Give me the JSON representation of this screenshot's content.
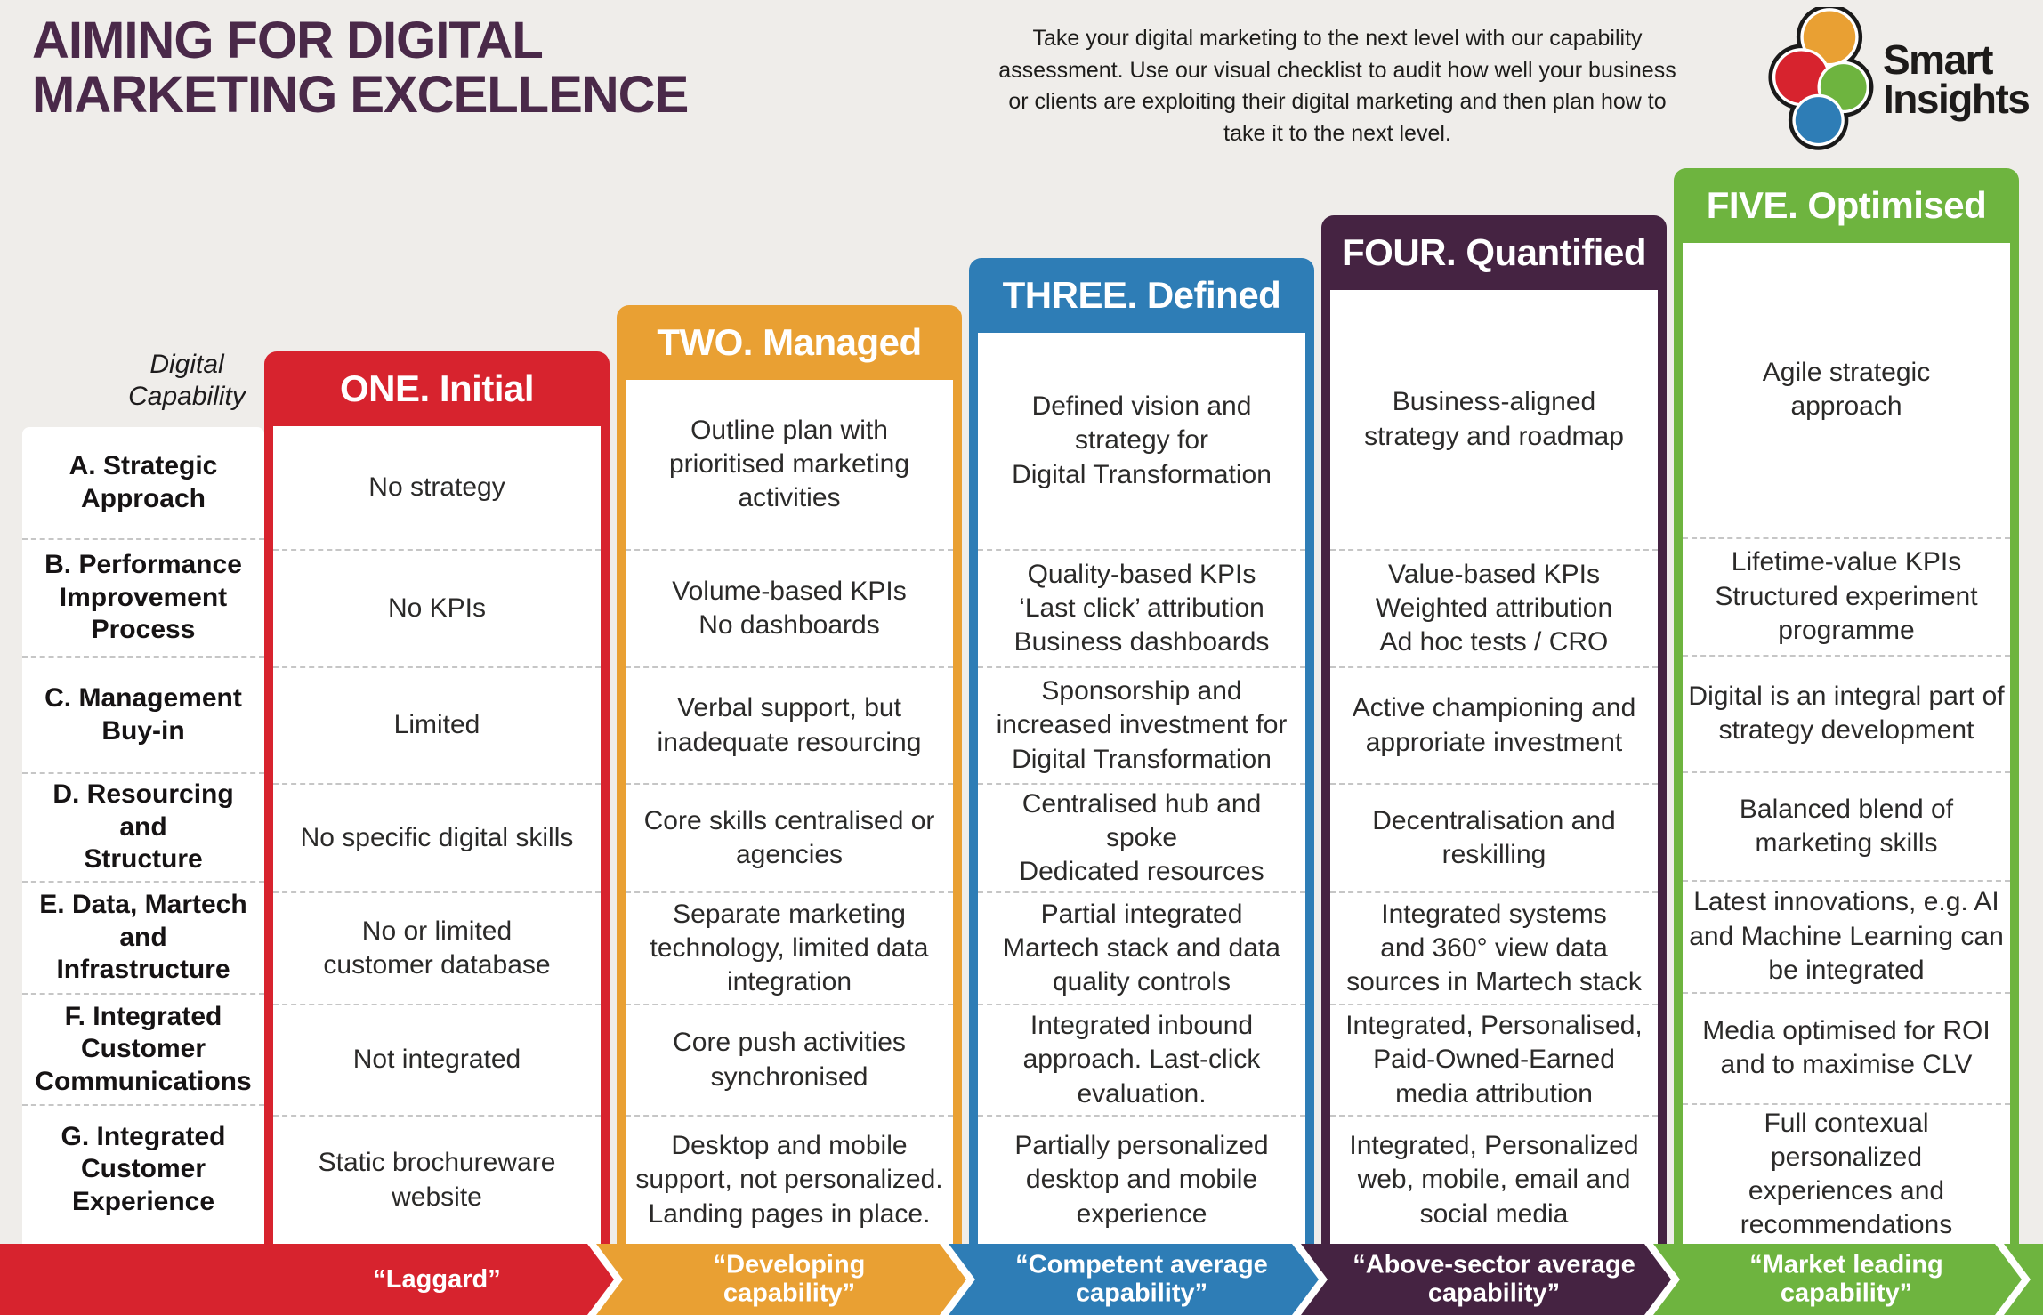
{
  "page": {
    "background": "#efedea"
  },
  "header": {
    "title_line1": "AIMING FOR DIGITAL",
    "title_line2": "MARKETING EXCELLENCE",
    "intro": "Take your digital marketing to the next level with our capability assessment. Use our visual checklist to audit how well your business or clients are exploiting their digital marketing and then plan how to take it to the next level.",
    "logo": {
      "line1": "Smart",
      "line2": "Insights",
      "circle_colors": {
        "top": "#e9a033",
        "left": "#d7232e",
        "right": "#6eb43f",
        "bottom": "#2e7db6"
      },
      "outline_color": "#1a1a1a"
    }
  },
  "matrix": {
    "axis_label": "Digital\nCapability",
    "row_labels": [
      "A. Strategic\nApproach",
      "B. Performance\nImprovement\nProcess",
      "C. Management\nBuy-in",
      "D. Resourcing\nand\nStructure",
      "E. Data, Martech\nand\nInfrastructure",
      "F. Integrated\nCustomer\nCommunications",
      "G. Integrated\nCustomer\nExperience"
    ],
    "columns": [
      {
        "id": "one",
        "header": "ONE. Initial",
        "color": "#d7232e",
        "banner": "“Laggard”",
        "cells": [
          "No strategy",
          "No KPIs",
          "Limited",
          "No specific digital skills",
          "No or limited\ncustomer database",
          "Not integrated",
          "Static brochureware\nwebsite"
        ]
      },
      {
        "id": "two",
        "header": "TWO. Managed",
        "color": "#e9a033",
        "banner": "“Developing\ncapability”",
        "cells": [
          "Outline plan with\nprioritised marketing\nactivities",
          "Volume-based KPIs\nNo dashboards",
          "Verbal support, but\ninadequate resourcing",
          "Core skills centralised or\nagencies",
          "Separate marketing\ntechnology, limited data\nintegration",
          "Core push activities\nsynchronised",
          "Desktop and mobile\nsupport, not personalized.\nLanding pages in place."
        ]
      },
      {
        "id": "three",
        "header": "THREE. Defined",
        "color": "#2e7db6",
        "banner": "“Competent average\ncapability”",
        "cells": [
          "Defined vision and\nstrategy for\nDigital Transformation",
          "Quality-based KPIs\n‘Last click’ attribution\nBusiness dashboards",
          "Sponsorship and\nincreased investment for\nDigital Transformation",
          "Centralised hub and spoke\nDedicated resources",
          "Partial integrated\nMartech stack and data\nquality controls",
          "Integrated inbound\napproach. Last-click\nevaluation.",
          "Partially personalized\ndesktop and mobile\nexperience"
        ]
      },
      {
        "id": "four",
        "header": "FOUR. Quantified",
        "color": "#452342",
        "banner": "“Above-sector average\ncapability”",
        "cells": [
          "Business-aligned\nstrategy and roadmap",
          "Value-based KPIs\nWeighted attribution\nAd hoc tests / CRO",
          "Active championing and\napproriate investment",
          "Decentralisation and\nreskilling",
          "Integrated systems\nand 360° view data\nsources in Martech stack",
          "Integrated, Personalised,\nPaid-Owned-Earned\nmedia attribution",
          "Integrated, Personalized\nweb, mobile, email and\nsocial media"
        ]
      },
      {
        "id": "five",
        "header": "FIVE. Optimised",
        "color": "#6eb43f",
        "banner": "“Market leading\ncapability”",
        "cells": [
          "Agile strategic\napproach",
          "Lifetime-value KPIs\nStructured experiment\nprogramme",
          "Digital is an integral part of\nstrategy development",
          "Balanced blend of\nmarketing skills",
          "Latest innovations, e.g. AI\nand Machine Learning can\nbe integrated",
          "Media optimised for ROI\nand to maximise CLV",
          "Full contexual personalized\nexperiences and\nrecommendations"
        ]
      }
    ]
  }
}
